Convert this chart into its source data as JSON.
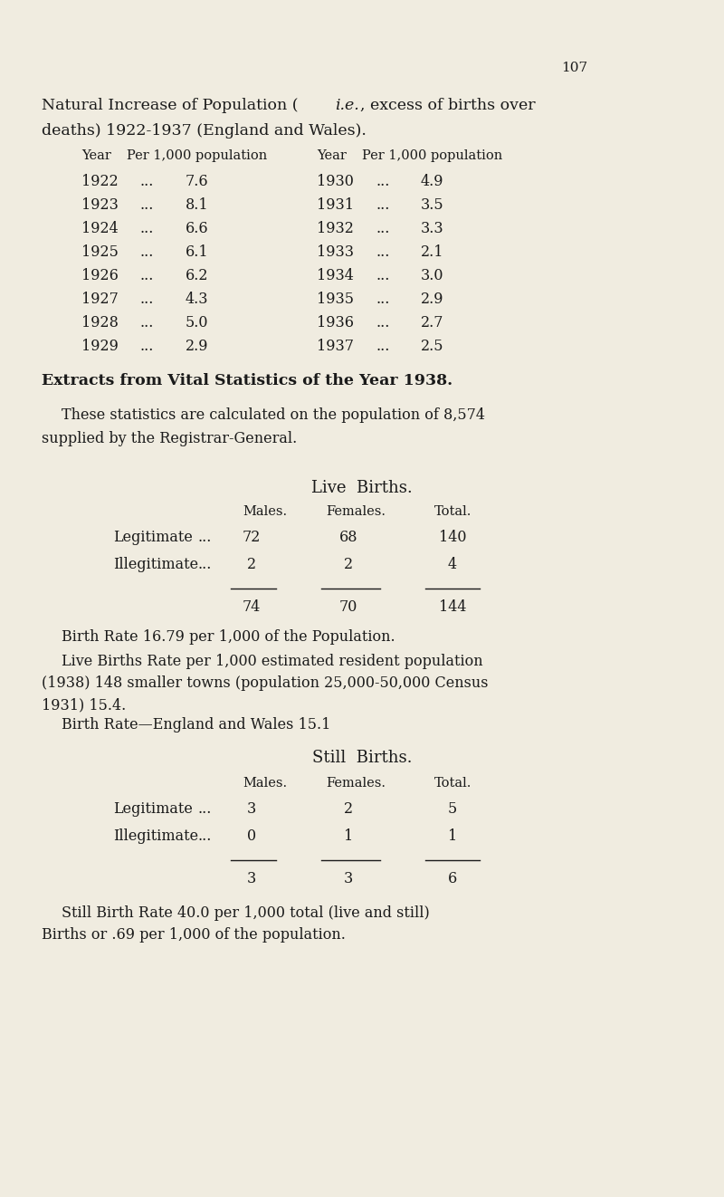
{
  "bg_color": "#f0ece0",
  "text_color": "#1a1a1a",
  "page_number": "107",
  "table1_left": [
    [
      "1922",
      "...",
      "7.6"
    ],
    [
      "1923",
      "...",
      "8.1"
    ],
    [
      "1924",
      "...",
      "6.6"
    ],
    [
      "1925",
      "...",
      "6.1"
    ],
    [
      "1926",
      "...",
      "6.2"
    ],
    [
      "1927",
      "...",
      "4.3"
    ],
    [
      "1928",
      "...",
      "5.0"
    ],
    [
      "1929",
      "...",
      "2.9"
    ]
  ],
  "table1_right": [
    [
      "1930",
      "...",
      "4.9"
    ],
    [
      "1931",
      "...",
      "3.5"
    ],
    [
      "1932",
      "...",
      "3.3"
    ],
    [
      "1933",
      "...",
      "2.1"
    ],
    [
      "1934",
      "...",
      "3.0"
    ],
    [
      "1935",
      "...",
      "2.9"
    ],
    [
      "1936",
      "...",
      "2.7"
    ],
    [
      "1937",
      "...",
      "2.5"
    ]
  ],
  "section_title": "Extracts from Vital Statistics of the Year 1938.",
  "live_births_title": "Live  Births.",
  "lb_col_headers": [
    "Males.",
    "Females.",
    "Total."
  ],
  "lb_rows": [
    [
      "Legitimate",
      "...",
      "72",
      "68",
      "140"
    ],
    [
      "Illegitimate",
      "...",
      "2",
      "2",
      "4"
    ]
  ],
  "lb_totals": [
    "74",
    "70",
    "144"
  ],
  "birth_rate_line": "Birth Rate 16.79 per 1,000 of the Population.",
  "birth_rate_ew": "Birth Rate—England and Wales 15.1",
  "still_births_title": "Still  Births.",
  "sb_col_headers": [
    "Males.",
    "Females.",
    "Total."
  ],
  "sb_rows": [
    [
      "Legitimate",
      "...",
      "3",
      "2",
      "5"
    ],
    [
      "Illegitimate",
      "...",
      "0",
      "1",
      "1"
    ]
  ],
  "sb_totals": [
    "3",
    "3",
    "6"
  ]
}
